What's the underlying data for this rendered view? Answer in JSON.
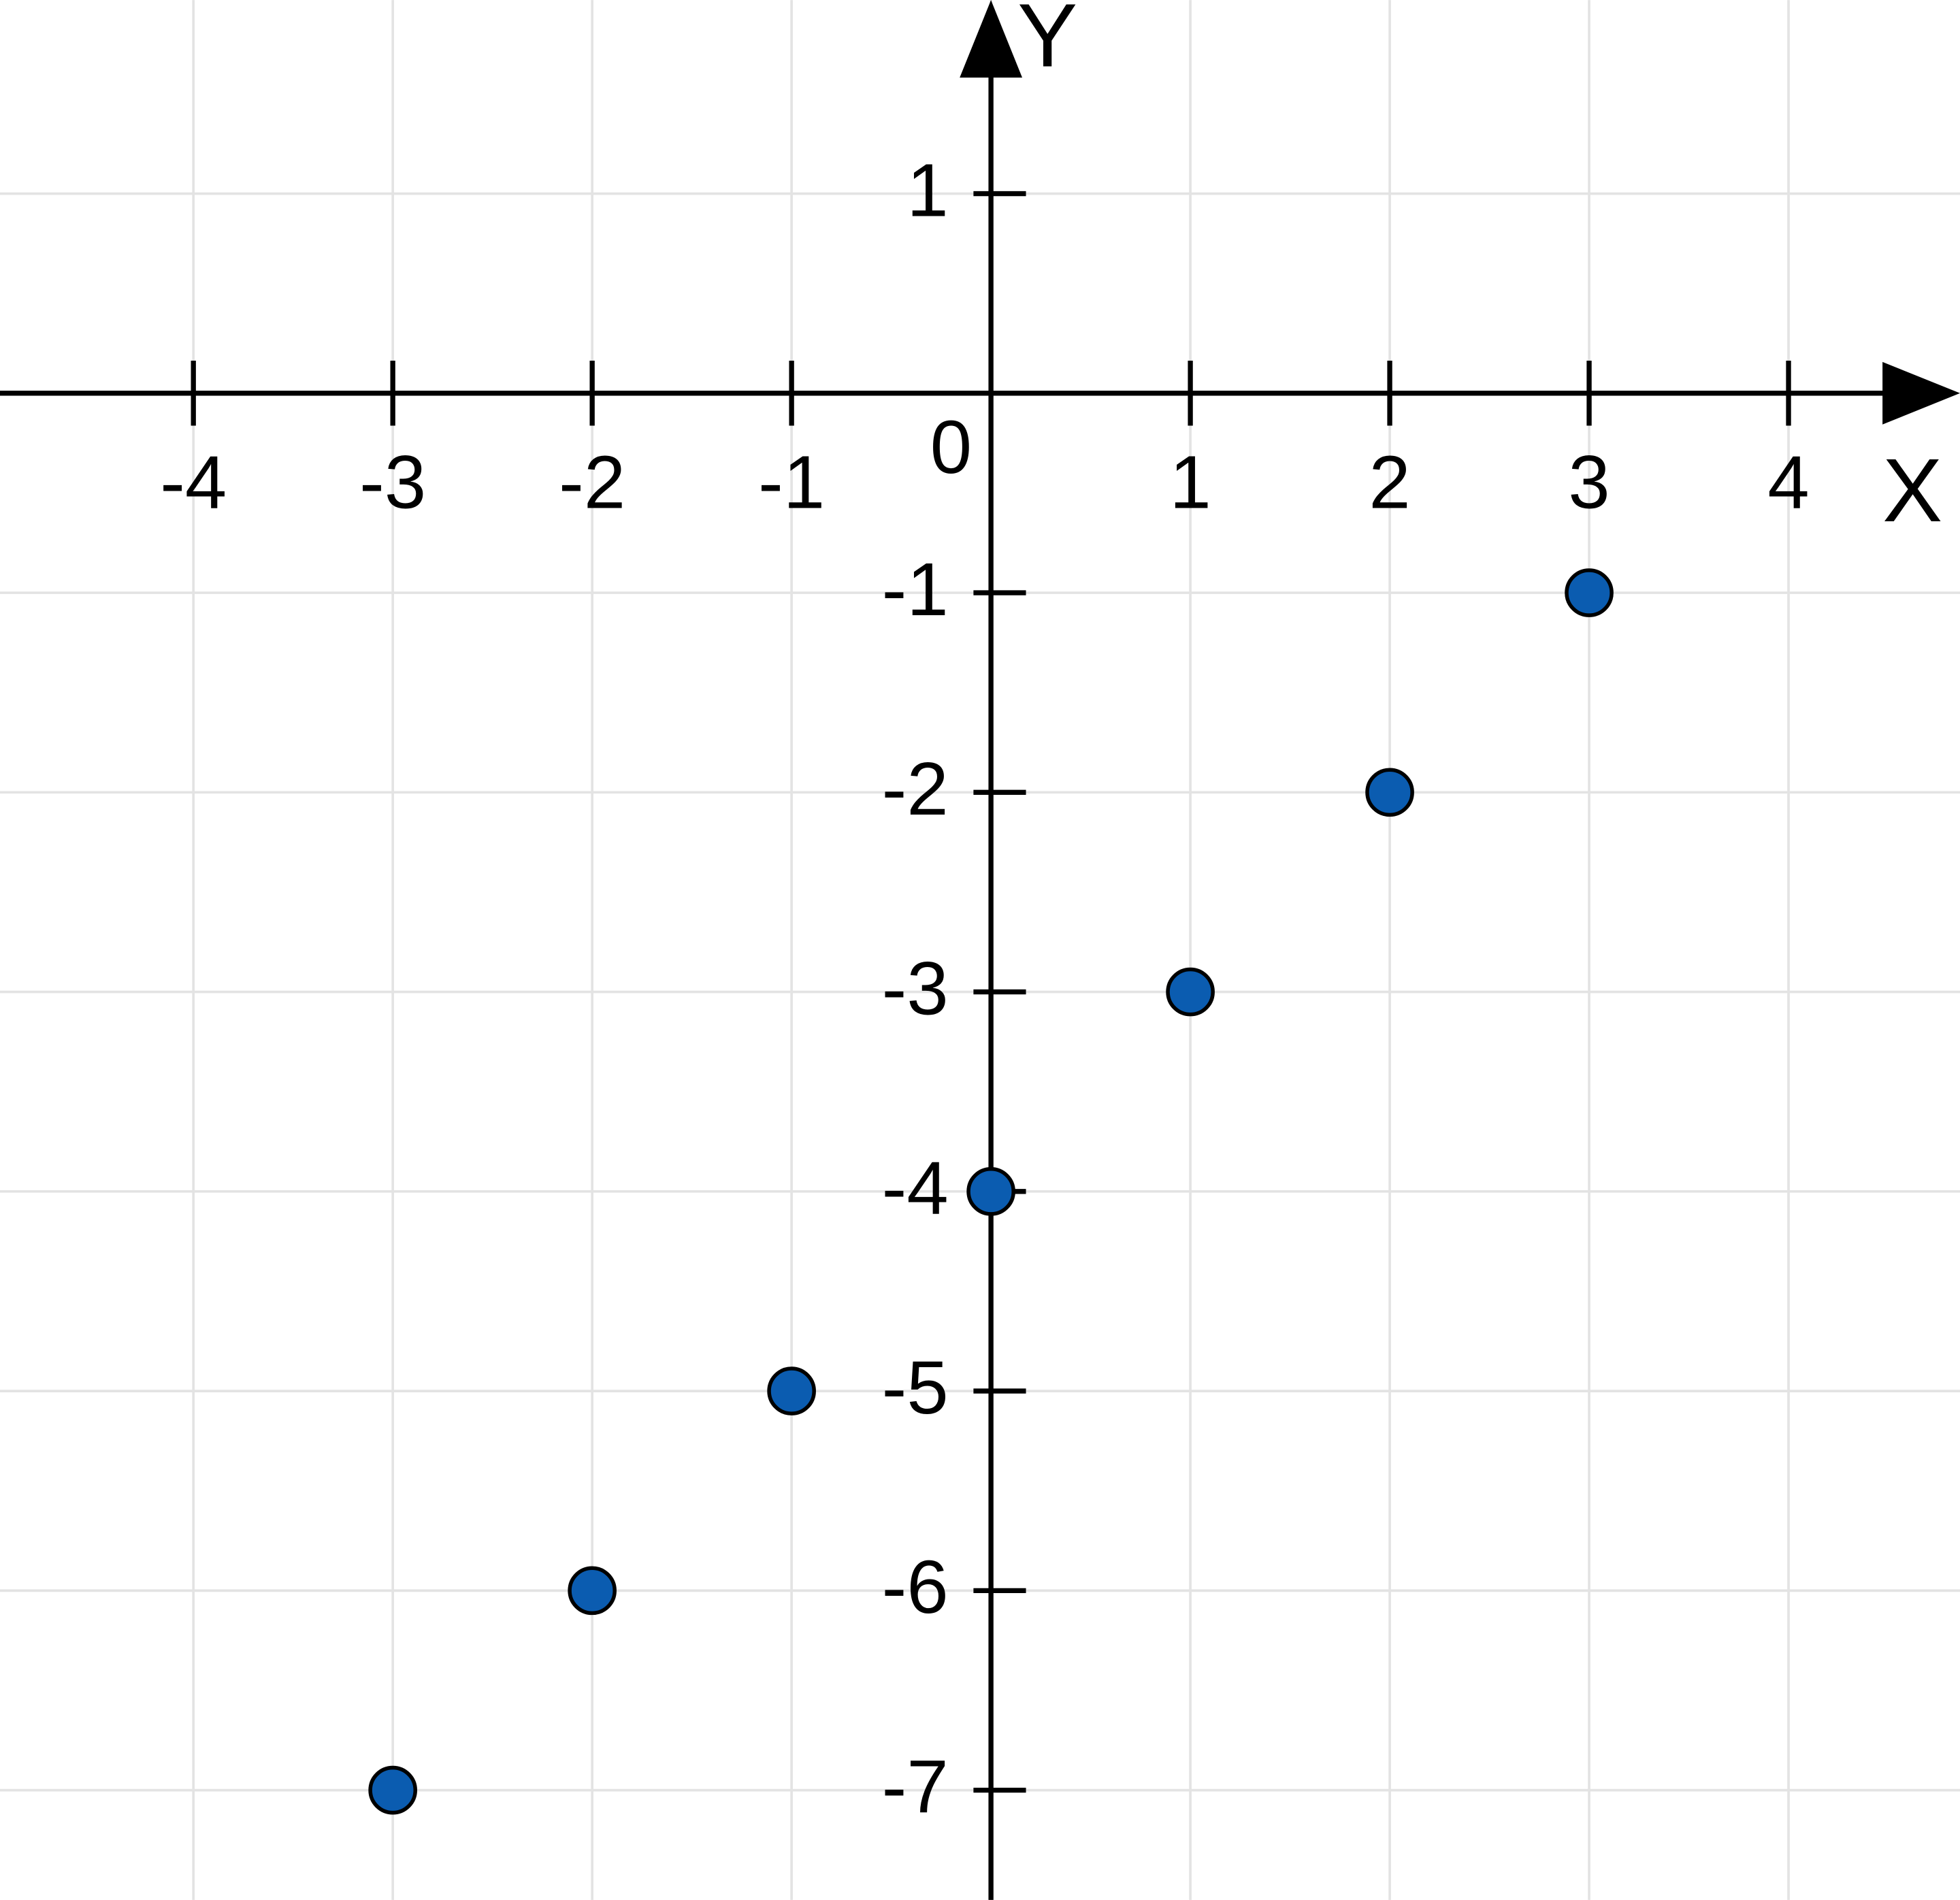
{
  "chart_data": {
    "type": "scatter",
    "x_label": "X",
    "y_label": "Y",
    "x": [
      -3,
      -2,
      -1,
      0,
      1,
      2,
      3
    ],
    "values": [
      -7,
      -6,
      -5,
      -4,
      -3,
      -2,
      -1
    ],
    "color": "#0b5cb0",
    "xlim": [
      -4.97,
      4.86
    ],
    "ylim": [
      -7.55,
      1.97
    ],
    "xticks": [
      -4,
      -3,
      -2,
      -1,
      0,
      1,
      2,
      3,
      4
    ],
    "yticks": [
      -7,
      -6,
      -5,
      -4,
      -3,
      -2,
      -1,
      1
    ],
    "grid": true
  }
}
